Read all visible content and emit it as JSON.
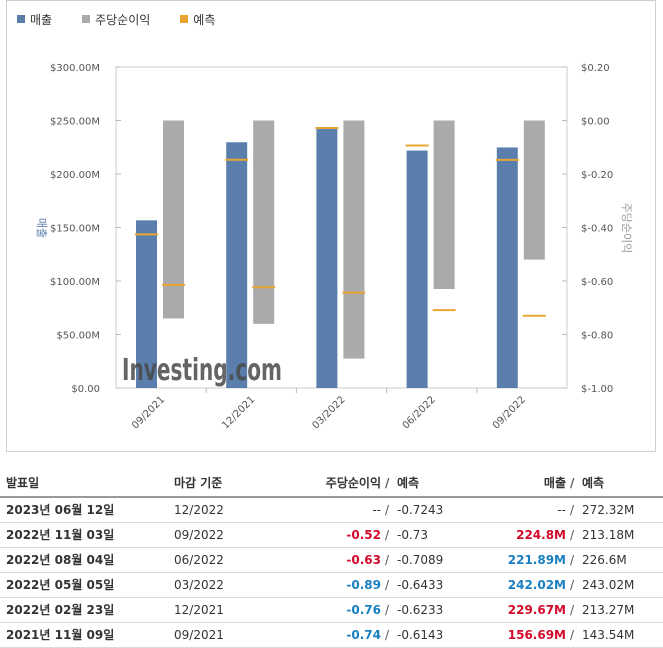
{
  "legend": [
    {
      "label": "매출",
      "color": "#5b7fad"
    },
    {
      "label": "주당순이익",
      "color": "#aaaaaa"
    },
    {
      "label": "예측",
      "color": "#e9a531"
    }
  ],
  "chart_data": {
    "type": "bar",
    "categories": [
      "09/2021",
      "12/2021",
      "03/2022",
      "06/2022",
      "09/2022"
    ],
    "series": [
      {
        "name": "매출",
        "axis": "left",
        "values": [
          156.69,
          229.67,
          242.02,
          221.89,
          224.8
        ],
        "forecast": [
          143.54,
          213.27,
          243.02,
          226.6,
          213.18
        ],
        "color": "#5b7fad"
      },
      {
        "name": "주당순이익",
        "axis": "right",
        "values": [
          -0.74,
          -0.76,
          -0.89,
          -0.63,
          -0.52
        ],
        "forecast": [
          -0.6143,
          -0.6233,
          -0.6433,
          -0.7089,
          -0.73
        ],
        "color": "#aaaaaa"
      }
    ],
    "forecast_color": "#e9a531",
    "ylabel_left": "매출",
    "ylabel_right": "주당순이익",
    "ylim_left": [
      0,
      300
    ],
    "ylim_right": [
      -1.0,
      0.2
    ],
    "left_ticks": [
      "$0.00",
      "$50.00M",
      "$100.00M",
      "$150.00M",
      "$200.00M",
      "$250.00M",
      "$300.00M"
    ],
    "left_tick_values": [
      0,
      50,
      100,
      150,
      200,
      250,
      300
    ],
    "right_ticks": [
      "$-1.00",
      "$-0.80",
      "$-0.60",
      "$-0.40",
      "$-0.20",
      "$0.00",
      "$0.20"
    ],
    "right_tick_values": [
      -1.0,
      -0.8,
      -0.6,
      -0.4,
      -0.2,
      0.0,
      0.2
    ],
    "watermark": "Investing.com"
  },
  "table": {
    "headers": {
      "date": "발표일",
      "period": "마감 기준",
      "eps": "주당순이익",
      "slash": "/",
      "eps_forecast": "예측",
      "revenue": "매출",
      "revenue_forecast": "예측"
    },
    "rows": [
      {
        "date": "2023년 06월 12일",
        "period": "12/2022",
        "eps": "--",
        "eps_class": "",
        "eps_forecast": "-0.7243",
        "revenue": "--",
        "rev_class": "",
        "revenue_forecast": "272.32M"
      },
      {
        "date": "2022년 11월 03일",
        "period": "09/2022",
        "eps": "-0.52",
        "eps_class": "neg",
        "eps_forecast": "-0.73",
        "revenue": "224.8M",
        "rev_class": "neg",
        "revenue_forecast": "213.18M"
      },
      {
        "date": "2022년 08월 04일",
        "period": "06/2022",
        "eps": "-0.63",
        "eps_class": "neg",
        "eps_forecast": "-0.7089",
        "revenue": "221.89M",
        "rev_class": "pos",
        "revenue_forecast": "226.6M"
      },
      {
        "date": "2022년 05월 05일",
        "period": "03/2022",
        "eps": "-0.89",
        "eps_class": "pos",
        "eps_forecast": "-0.6433",
        "revenue": "242.02M",
        "rev_class": "pos",
        "revenue_forecast": "243.02M"
      },
      {
        "date": "2022년 02월 23일",
        "period": "12/2021",
        "eps": "-0.76",
        "eps_class": "pos",
        "eps_forecast": "-0.6233",
        "revenue": "229.67M",
        "rev_class": "neg",
        "revenue_forecast": "213.27M"
      },
      {
        "date": "2021년 11월 09일",
        "period": "09/2021",
        "eps": "-0.74",
        "eps_class": "pos",
        "eps_forecast": "-0.6143",
        "revenue": "156.69M",
        "rev_class": "neg",
        "revenue_forecast": "143.54M"
      }
    ]
  }
}
